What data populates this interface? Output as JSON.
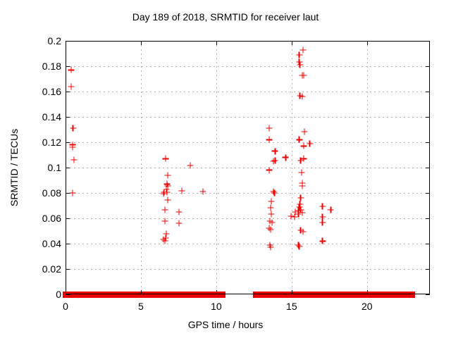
{
  "page": {
    "background": "#ffffff"
  },
  "chart_data": {
    "type": "scatter",
    "title": "Day 189 of 2018, SRMTID for receiver laut",
    "xlabel": "GPS time / hours",
    "ylabel": "SRMTID / TECUs",
    "xlim": [
      0,
      24.17
    ],
    "ylim": [
      0,
      0.2
    ],
    "x_ticks": [
      0,
      5,
      10,
      15,
      20
    ],
    "x_tick_labels": [
      "0",
      "5",
      "10",
      "15",
      "20"
    ],
    "y_ticks": [
      0,
      0.02,
      0.04,
      0.06,
      0.08,
      0.1,
      0.12,
      0.14,
      0.16,
      0.18,
      0.2
    ],
    "y_tick_labels": [
      "0",
      "0.02",
      "0.04",
      "0.06",
      "0.08",
      "0.1",
      "0.12",
      "0.14",
      "0.16",
      "0.18",
      "0.2"
    ],
    "grid": true,
    "legend_position": "none",
    "marker": "plus",
    "colors": {
      "marker": "#ee0000",
      "grid": "#b0b0b0",
      "axis": "#000000"
    },
    "points": [
      [
        0.37,
        0.177
      ],
      [
        0.37,
        0.164
      ],
      [
        0.5,
        0.131
      ],
      [
        0.47,
        0.118
      ],
      [
        0.47,
        0.116
      ],
      [
        0.56,
        0.106
      ],
      [
        0.47,
        0.08
      ],
      [
        6.64,
        0.107
      ],
      [
        6.78,
        0.094
      ],
      [
        6.73,
        0.087
      ],
      [
        6.78,
        0.0856
      ],
      [
        6.68,
        0.0828
      ],
      [
        6.54,
        0.0806
      ],
      [
        6.73,
        0.0806
      ],
      [
        6.5,
        0.0794
      ],
      [
        6.78,
        0.0744
      ],
      [
        6.59,
        0.0667
      ],
      [
        6.59,
        0.0578
      ],
      [
        6.68,
        0.0478
      ],
      [
        6.5,
        0.0433
      ],
      [
        6.59,
        0.0422
      ],
      [
        6.64,
        0.0444
      ],
      [
        7.52,
        0.065
      ],
      [
        7.52,
        0.0561
      ],
      [
        7.71,
        0.0817
      ],
      [
        8.27,
        0.1017
      ],
      [
        9.11,
        0.0811
      ],
      [
        13.5,
        0.131
      ],
      [
        13.5,
        0.122
      ],
      [
        13.9,
        0.113
      ],
      [
        13.9,
        0.1056
      ],
      [
        13.8,
        0.105
      ],
      [
        14.6,
        0.108
      ],
      [
        13.5,
        0.098
      ],
      [
        13.8,
        0.0811
      ],
      [
        13.85,
        0.08
      ],
      [
        13.65,
        0.0733
      ],
      [
        13.6,
        0.0683
      ],
      [
        13.65,
        0.0633
      ],
      [
        13.55,
        0.0578
      ],
      [
        13.7,
        0.0567
      ],
      [
        13.5,
        0.0522
      ],
      [
        13.6,
        0.0511
      ],
      [
        13.55,
        0.0389
      ],
      [
        13.6,
        0.0372
      ],
      [
        14.95,
        0.0617
      ],
      [
        15.2,
        0.0611
      ],
      [
        15.75,
        0.1928
      ],
      [
        15.5,
        0.1889
      ],
      [
        15.5,
        0.1833
      ],
      [
        15.55,
        0.1811
      ],
      [
        15.7,
        0.1728
      ],
      [
        15.8,
        0.1728
      ],
      [
        15.55,
        0.1567
      ],
      [
        15.7,
        0.156
      ],
      [
        15.84,
        0.1283
      ],
      [
        15.5,
        0.122
      ],
      [
        15.8,
        0.117
      ],
      [
        16.2,
        0.119
      ],
      [
        15.8,
        0.107
      ],
      [
        15.6,
        0.1056
      ],
      [
        15.65,
        0.096
      ],
      [
        15.7,
        0.0878
      ],
      [
        15.7,
        0.0856
      ],
      [
        15.6,
        0.0761
      ],
      [
        15.55,
        0.071
      ],
      [
        15.5,
        0.0689
      ],
      [
        15.6,
        0.0667
      ],
      [
        15.45,
        0.066
      ],
      [
        15.24,
        0.065
      ],
      [
        15.45,
        0.0633
      ],
      [
        15.7,
        0.0644
      ],
      [
        15.6,
        0.0506
      ],
      [
        15.75,
        0.0494
      ],
      [
        15.45,
        0.0389
      ],
      [
        15.5,
        0.0378
      ],
      [
        17.05,
        0.0694
      ],
      [
        17.05,
        0.0611
      ],
      [
        17.05,
        0.0567
      ],
      [
        17.05,
        0.042
      ],
      [
        17.6,
        0.0667
      ]
    ],
    "baseline_segments": [
      [
        0.0,
        0.22
      ],
      [
        0.3,
        0.58
      ],
      [
        0.66,
        0.95
      ],
      [
        1.02,
        6.43
      ],
      [
        6.47,
        6.51
      ],
      [
        6.55,
        6.59
      ],
      [
        6.63,
        9.83
      ],
      [
        9.93,
        10.42
      ],
      [
        12.62,
        14.92
      ],
      [
        15.02,
        15.48
      ],
      [
        15.57,
        15.87
      ],
      [
        15.95,
        22.98
      ]
    ]
  }
}
